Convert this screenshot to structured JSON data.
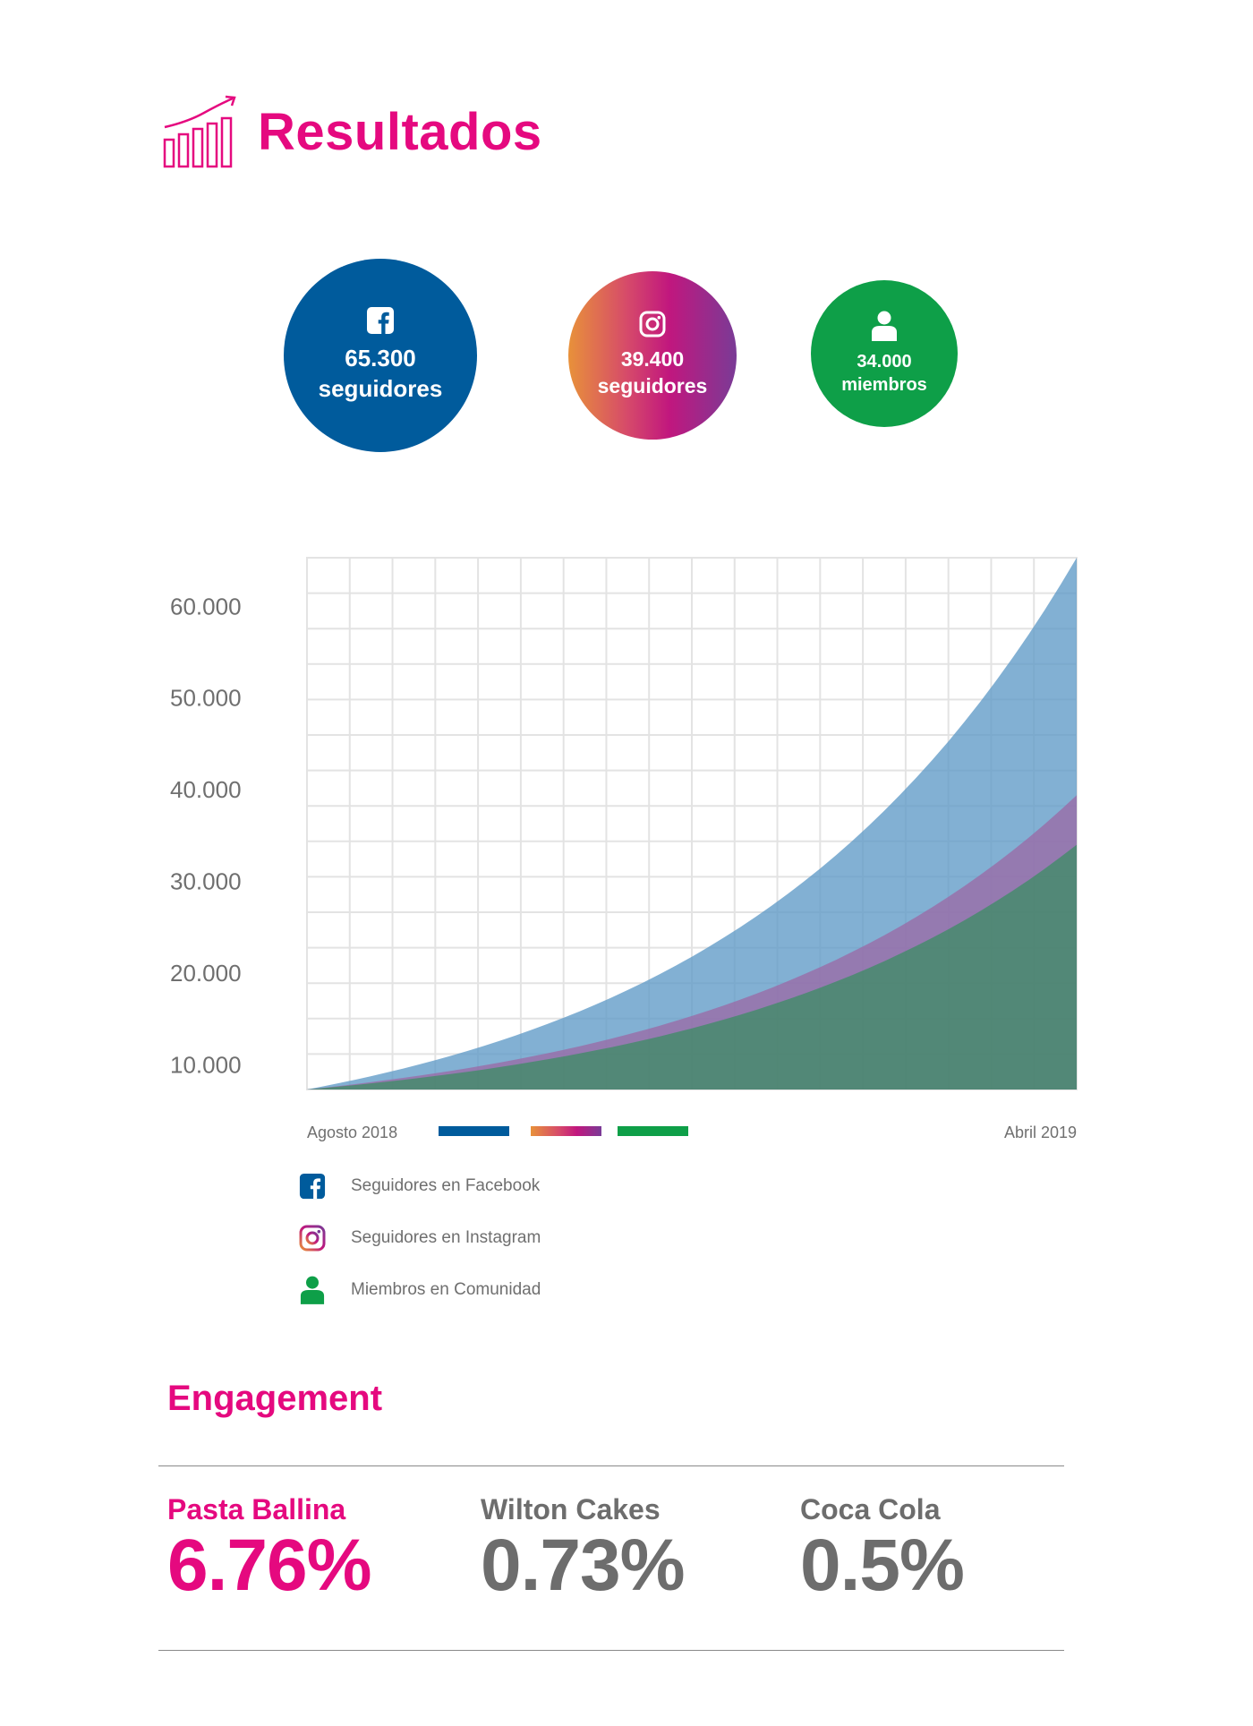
{
  "header": {
    "title": "Resultados",
    "icon": "bar-chart-growth-icon",
    "accent": "#e5097f"
  },
  "stats": [
    {
      "icon": "facebook-icon",
      "value": "65.300",
      "label": "seguidores",
      "color": "#005b9c"
    },
    {
      "icon": "instagram-icon",
      "value": "39.400",
      "label": "seguidores",
      "color": "gradient"
    },
    {
      "icon": "person-icon",
      "value": "34.000",
      "label": "miembros",
      "color": "#0e9f48"
    }
  ],
  "chart_data": {
    "type": "area",
    "x_start_label": "Agosto 2018",
    "x_end_label": "Abril 2019",
    "y_ticks": [
      "10.000",
      "20.000",
      "30.000",
      "40.000",
      "50.000",
      "60.000"
    ],
    "y_tick_values": [
      10000,
      20000,
      30000,
      40000,
      50000,
      60000
    ],
    "ylim": [
      7300,
      65300
    ],
    "grid": true,
    "stacked": false,
    "series": [
      {
        "key": "facebook",
        "end_value": 65300,
        "color": "#5f9ac7"
      },
      {
        "key": "instagram",
        "end_value": 39400,
        "color": "#9b6aa6"
      },
      {
        "key": "community",
        "end_value": 34000,
        "color": "#3f8c66"
      }
    ]
  },
  "legend": [
    {
      "icon": "facebook-icon",
      "label": "Seguidores en Facebook"
    },
    {
      "icon": "instagram-icon",
      "label": "Seguidores en Instagram"
    },
    {
      "icon": "person-icon",
      "label": "Miembros en Comunidad"
    }
  ],
  "engagement": {
    "title": "Engagement",
    "items": [
      {
        "brand": "Pasta Ballina",
        "value": "6.76%"
      },
      {
        "brand": "Wilton Cakes",
        "value": "0.73%"
      },
      {
        "brand": "Coca Cola",
        "value": "0.5%"
      }
    ]
  }
}
